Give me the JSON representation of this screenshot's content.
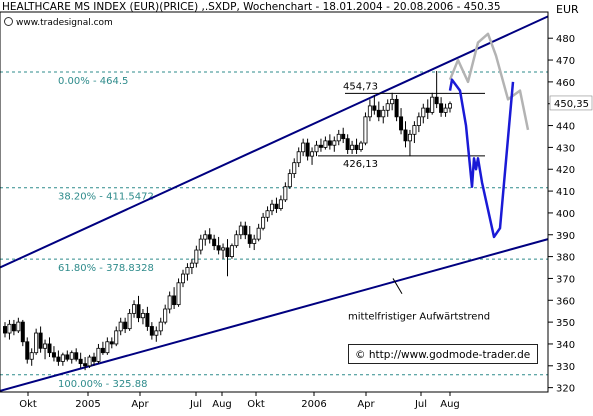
{
  "header": {
    "title": "HEALTHCARE MS INDEX (EUR)(PRICE) ,.SXDP, Wochenchart - 18.01.2004 - 20.08.2006 - 450.35",
    "watermark": "www.tradesignal.com",
    "currency": "EUR",
    "credit": "© http://www.godmode-trader.de"
  },
  "chart_data": {
    "type": "candlestick",
    "title": "HEALTHCARE MS INDEX (EUR)(PRICE) ,.SXDP, Wochenchart - 18.01.2004 - 20.08.2006 - 450.35",
    "ylabel": "EUR",
    "ylim": [
      318,
      492
    ],
    "yticks": [
      320,
      330,
      340,
      350,
      360,
      370,
      380,
      390,
      400,
      410,
      420,
      430,
      440,
      450,
      460,
      470,
      480
    ],
    "ytick_labels": [
      "320",
      "330",
      "340",
      "350",
      "360",
      "370",
      "380",
      "390",
      "400",
      "410",
      "420",
      "430",
      "440",
      "450",
      "460",
      "470",
      "480"
    ],
    "x_labels": [
      "Okt",
      "2005",
      "Apr",
      "Jul",
      "Aug",
      "Okt",
      "2006",
      "Apr",
      "Jul",
      "Aug"
    ],
    "last_price": "450,35",
    "candle_colors": {
      "up": "#ffffff",
      "down": "#000000",
      "wick": "#000000"
    },
    "candles": [
      {
        "o": 348,
        "h": 350,
        "l": 343,
        "c": 345
      },
      {
        "o": 345,
        "h": 351,
        "l": 342,
        "c": 349
      },
      {
        "o": 349,
        "h": 351,
        "l": 344,
        "c": 346
      },
      {
        "o": 346,
        "h": 352,
        "l": 345,
        "c": 350
      },
      {
        "o": 350,
        "h": 351,
        "l": 339,
        "c": 341
      },
      {
        "o": 341,
        "h": 343,
        "l": 331,
        "c": 333
      },
      {
        "o": 333,
        "h": 338,
        "l": 330,
        "c": 336
      },
      {
        "o": 336,
        "h": 347,
        "l": 335,
        "c": 345
      },
      {
        "o": 345,
        "h": 348,
        "l": 336,
        "c": 338
      },
      {
        "o": 338,
        "h": 342,
        "l": 333,
        "c": 340
      },
      {
        "o": 340,
        "h": 343,
        "l": 334,
        "c": 336
      },
      {
        "o": 336,
        "h": 339,
        "l": 332,
        "c": 334
      },
      {
        "o": 334,
        "h": 337,
        "l": 330,
        "c": 332
      },
      {
        "o": 332,
        "h": 336,
        "l": 330,
        "c": 335
      },
      {
        "o": 335,
        "h": 337,
        "l": 332,
        "c": 333
      },
      {
        "o": 333,
        "h": 337,
        "l": 331,
        "c": 336
      },
      {
        "o": 336,
        "h": 338,
        "l": 332,
        "c": 333
      },
      {
        "o": 333,
        "h": 336,
        "l": 329,
        "c": 331
      },
      {
        "o": 331,
        "h": 334,
        "l": 328,
        "c": 330
      },
      {
        "o": 330,
        "h": 335,
        "l": 329,
        "c": 334
      },
      {
        "o": 334,
        "h": 336,
        "l": 330,
        "c": 332
      },
      {
        "o": 332,
        "h": 340,
        "l": 331,
        "c": 338
      },
      {
        "o": 338,
        "h": 341,
        "l": 335,
        "c": 336
      },
      {
        "o": 336,
        "h": 343,
        "l": 335,
        "c": 341
      },
      {
        "o": 341,
        "h": 343,
        "l": 338,
        "c": 340
      },
      {
        "o": 340,
        "h": 348,
        "l": 339,
        "c": 346
      },
      {
        "o": 346,
        "h": 352,
        "l": 344,
        "c": 350
      },
      {
        "o": 350,
        "h": 352,
        "l": 345,
        "c": 347
      },
      {
        "o": 347,
        "h": 356,
        "l": 346,
        "c": 354
      },
      {
        "o": 354,
        "h": 360,
        "l": 352,
        "c": 358
      },
      {
        "o": 358,
        "h": 362,
        "l": 350,
        "c": 352
      },
      {
        "o": 352,
        "h": 356,
        "l": 349,
        "c": 354
      },
      {
        "o": 354,
        "h": 357,
        "l": 346,
        "c": 348
      },
      {
        "o": 348,
        "h": 350,
        "l": 342,
        "c": 344
      },
      {
        "o": 344,
        "h": 348,
        "l": 341,
        "c": 346
      },
      {
        "o": 346,
        "h": 352,
        "l": 344,
        "c": 350
      },
      {
        "o": 350,
        "h": 358,
        "l": 349,
        "c": 356
      },
      {
        "o": 356,
        "h": 364,
        "l": 354,
        "c": 362
      },
      {
        "o": 362,
        "h": 366,
        "l": 356,
        "c": 358
      },
      {
        "o": 358,
        "h": 370,
        "l": 357,
        "c": 368
      },
      {
        "o": 368,
        "h": 374,
        "l": 366,
        "c": 372
      },
      {
        "o": 372,
        "h": 377,
        "l": 369,
        "c": 375
      },
      {
        "o": 375,
        "h": 379,
        "l": 372,
        "c": 377
      },
      {
        "o": 377,
        "h": 385,
        "l": 375,
        "c": 383
      },
      {
        "o": 383,
        "h": 390,
        "l": 381,
        "c": 388
      },
      {
        "o": 388,
        "h": 392,
        "l": 385,
        "c": 390
      },
      {
        "o": 390,
        "h": 393,
        "l": 386,
        "c": 388
      },
      {
        "o": 388,
        "h": 390,
        "l": 383,
        "c": 385
      },
      {
        "o": 385,
        "h": 389,
        "l": 381,
        "c": 383
      },
      {
        "o": 383,
        "h": 386,
        "l": 379,
        "c": 384
      },
      {
        "o": 384,
        "h": 388,
        "l": 371,
        "c": 380
      },
      {
        "o": 380,
        "h": 386,
        "l": 379,
        "c": 385
      },
      {
        "o": 385,
        "h": 392,
        "l": 384,
        "c": 390
      },
      {
        "o": 390,
        "h": 396,
        "l": 388,
        "c": 394
      },
      {
        "o": 394,
        "h": 396,
        "l": 388,
        "c": 390
      },
      {
        "o": 390,
        "h": 394,
        "l": 384,
        "c": 386
      },
      {
        "o": 386,
        "h": 390,
        "l": 383,
        "c": 388
      },
      {
        "o": 388,
        "h": 395,
        "l": 387,
        "c": 393
      },
      {
        "o": 393,
        "h": 400,
        "l": 392,
        "c": 398
      },
      {
        "o": 398,
        "h": 403,
        "l": 396,
        "c": 401
      },
      {
        "o": 401,
        "h": 406,
        "l": 399,
        "c": 404
      },
      {
        "o": 404,
        "h": 407,
        "l": 400,
        "c": 402
      },
      {
        "o": 402,
        "h": 408,
        "l": 401,
        "c": 406
      },
      {
        "o": 406,
        "h": 414,
        "l": 405,
        "c": 412
      },
      {
        "o": 412,
        "h": 420,
        "l": 411,
        "c": 418
      },
      {
        "o": 418,
        "h": 425,
        "l": 416,
        "c": 423
      },
      {
        "o": 423,
        "h": 430,
        "l": 421,
        "c": 428
      },
      {
        "o": 428,
        "h": 434,
        "l": 426,
        "c": 432
      },
      {
        "o": 432,
        "h": 434,
        "l": 424,
        "c": 426
      },
      {
        "o": 426,
        "h": 430,
        "l": 422,
        "c": 428
      },
      {
        "o": 428,
        "h": 433,
        "l": 426,
        "c": 431
      },
      {
        "o": 431,
        "h": 434,
        "l": 428,
        "c": 430
      },
      {
        "o": 430,
        "h": 435,
        "l": 429,
        "c": 433
      },
      {
        "o": 433,
        "h": 436,
        "l": 429,
        "c": 431
      },
      {
        "o": 431,
        "h": 435,
        "l": 428,
        "c": 433
      },
      {
        "o": 433,
        "h": 438,
        "l": 431,
        "c": 436
      },
      {
        "o": 436,
        "h": 439,
        "l": 432,
        "c": 434
      },
      {
        "o": 434,
        "h": 436,
        "l": 427,
        "c": 429
      },
      {
        "o": 429,
        "h": 433,
        "l": 427,
        "c": 431
      },
      {
        "o": 431,
        "h": 434,
        "l": 427,
        "c": 429
      },
      {
        "o": 429,
        "h": 433,
        "l": 428,
        "c": 432
      },
      {
        "o": 432,
        "h": 446,
        "l": 431,
        "c": 444
      },
      {
        "o": 444,
        "h": 452,
        "l": 442,
        "c": 449
      },
      {
        "o": 449,
        "h": 454,
        "l": 445,
        "c": 447
      },
      {
        "o": 447,
        "h": 451,
        "l": 442,
        "c": 444
      },
      {
        "o": 444,
        "h": 449,
        "l": 441,
        "c": 447
      },
      {
        "o": 447,
        "h": 452,
        "l": 444,
        "c": 450
      },
      {
        "o": 450,
        "h": 455,
        "l": 447,
        "c": 452
      },
      {
        "o": 452,
        "h": 454,
        "l": 442,
        "c": 444
      },
      {
        "o": 444,
        "h": 448,
        "l": 436,
        "c": 438
      },
      {
        "o": 438,
        "h": 442,
        "l": 430,
        "c": 433
      },
      {
        "o": 433,
        "h": 438,
        "l": 426,
        "c": 436
      },
      {
        "o": 436,
        "h": 442,
        "l": 432,
        "c": 440
      },
      {
        "o": 440,
        "h": 446,
        "l": 437,
        "c": 444
      },
      {
        "o": 444,
        "h": 450,
        "l": 441,
        "c": 448
      },
      {
        "o": 448,
        "h": 452,
        "l": 443,
        "c": 446
      },
      {
        "o": 446,
        "h": 455,
        "l": 445,
        "c": 453
      },
      {
        "o": 453,
        "h": 465,
        "l": 448,
        "c": 450
      },
      {
        "o": 450,
        "h": 453,
        "l": 444,
        "c": 446
      },
      {
        "o": 446,
        "h": 450,
        "l": 444,
        "c": 448
      },
      {
        "o": 448,
        "h": 451,
        "l": 446,
        "c": 450
      }
    ],
    "fibonacci": [
      {
        "label": "0.00% - 464.5",
        "value": 464.5
      },
      {
        "label": "38.20% - 411.5472",
        "value": 411.5472
      },
      {
        "label": "61.80% - 378.8328",
        "value": 378.8328
      },
      {
        "label": "100.00% - 325.88",
        "value": 325.88
      }
    ],
    "horizontal_levels": [
      {
        "label": "454,73",
        "value": 454.73
      },
      {
        "label": "426,13",
        "value": 426.13
      }
    ],
    "trendline_label": "mittelfristiger Aufwärtstrend",
    "channel_color": "#000080",
    "fib_color": "#2e8b8b",
    "projection_blue": [
      [
        450,
        456
      ],
      [
        452,
        461
      ],
      [
        460,
        456
      ],
      [
        466,
        440
      ],
      [
        472,
        412
      ],
      [
        474,
        425
      ],
      [
        476,
        420
      ],
      [
        478,
        425
      ],
      [
        482,
        414
      ],
      [
        494,
        389
      ],
      [
        500,
        393
      ],
      [
        513,
        460
      ]
    ],
    "projection_gray": [
      [
        450,
        461
      ],
      [
        458,
        470
      ],
      [
        468,
        460
      ],
      [
        478,
        478
      ],
      [
        488,
        482
      ],
      [
        496,
        472
      ],
      [
        508,
        452
      ],
      [
        520,
        456
      ],
      [
        528,
        438
      ]
    ]
  }
}
